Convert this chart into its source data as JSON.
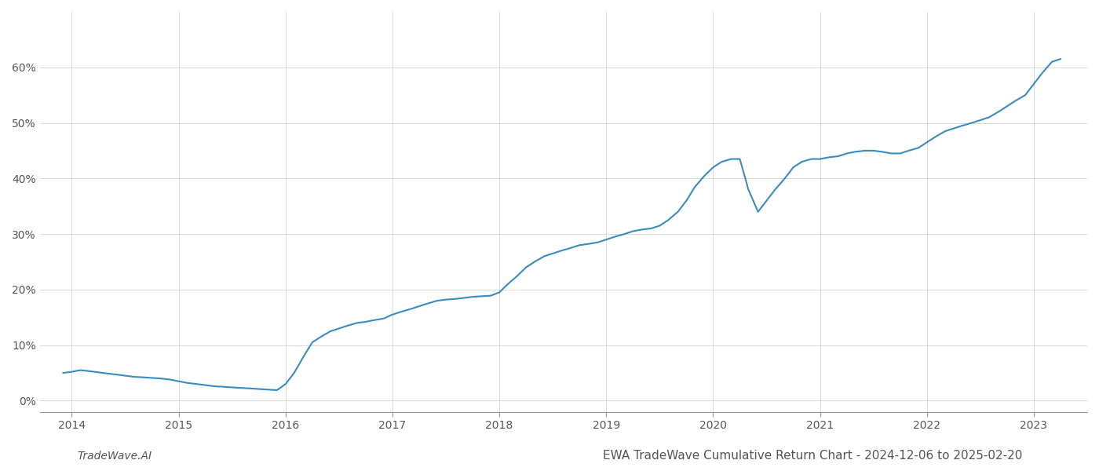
{
  "title": "EWA TradeWave Cumulative Return Chart - 2024-12-06 to 2025-02-20",
  "watermark": "TradeWave.AI",
  "line_color": "#3a8bbf",
  "line_width": 1.5,
  "background_color": "#ffffff",
  "grid_color": "#cccccc",
  "x_years": [
    2014,
    2015,
    2016,
    2017,
    2018,
    2019,
    2020,
    2021,
    2022,
    2023
  ],
  "x_data": [
    2013.92,
    2014.0,
    2014.08,
    2014.17,
    2014.25,
    2014.33,
    2014.42,
    2014.5,
    2014.58,
    2014.67,
    2014.75,
    2014.83,
    2014.92,
    2015.0,
    2015.08,
    2015.17,
    2015.25,
    2015.33,
    2015.42,
    2015.5,
    2015.58,
    2015.67,
    2015.75,
    2015.83,
    2015.92,
    2016.0,
    2016.08,
    2016.17,
    2016.25,
    2016.33,
    2016.42,
    2016.5,
    2016.58,
    2016.67,
    2016.75,
    2016.83,
    2016.92,
    2017.0,
    2017.08,
    2017.17,
    2017.25,
    2017.33,
    2017.42,
    2017.5,
    2017.58,
    2017.67,
    2017.75,
    2017.83,
    2017.92,
    2018.0,
    2018.08,
    2018.17,
    2018.25,
    2018.33,
    2018.42,
    2018.5,
    2018.58,
    2018.67,
    2018.75,
    2018.83,
    2018.92,
    2019.0,
    2019.08,
    2019.17,
    2019.25,
    2019.33,
    2019.42,
    2019.5,
    2019.58,
    2019.67,
    2019.75,
    2019.83,
    2019.92,
    2020.0,
    2020.08,
    2020.17,
    2020.25,
    2020.33,
    2020.42,
    2020.5,
    2020.58,
    2020.67,
    2020.75,
    2020.83,
    2020.92,
    2021.0,
    2021.08,
    2021.17,
    2021.25,
    2021.33,
    2021.42,
    2021.5,
    2021.58,
    2021.67,
    2021.75,
    2021.83,
    2021.92,
    2022.0,
    2022.08,
    2022.17,
    2022.25,
    2022.33,
    2022.42,
    2022.5,
    2022.58,
    2022.67,
    2022.75,
    2022.83,
    2022.92,
    2023.0,
    2023.08,
    2023.17,
    2023.25
  ],
  "y_data": [
    5.0,
    5.2,
    5.5,
    5.3,
    5.1,
    4.9,
    4.7,
    4.5,
    4.3,
    4.2,
    4.1,
    4.0,
    3.8,
    3.5,
    3.2,
    3.0,
    2.8,
    2.6,
    2.5,
    2.4,
    2.3,
    2.2,
    2.1,
    2.0,
    1.9,
    3.0,
    5.0,
    8.0,
    10.5,
    11.5,
    12.5,
    13.0,
    13.5,
    14.0,
    14.2,
    14.5,
    14.8,
    15.5,
    16.0,
    16.5,
    17.0,
    17.5,
    18.0,
    18.2,
    18.3,
    18.5,
    18.7,
    18.8,
    18.9,
    19.5,
    21.0,
    22.5,
    24.0,
    25.0,
    26.0,
    26.5,
    27.0,
    27.5,
    28.0,
    28.2,
    28.5,
    29.0,
    29.5,
    30.0,
    30.5,
    30.8,
    31.0,
    31.5,
    32.5,
    34.0,
    36.0,
    38.5,
    40.5,
    42.0,
    43.0,
    43.5,
    43.5,
    38.0,
    34.0,
    36.0,
    38.0,
    40.0,
    42.0,
    43.0,
    43.5,
    43.5,
    43.8,
    44.0,
    44.5,
    44.8,
    45.0,
    45.0,
    44.8,
    44.5,
    44.5,
    45.0,
    45.5,
    46.5,
    47.5,
    48.5,
    49.0,
    49.5,
    50.0,
    50.5,
    51.0,
    52.0,
    53.0,
    54.0,
    55.0,
    57.0,
    59.0,
    61.0,
    61.5
  ],
  "ylim": [
    -2,
    70
  ],
  "yticks": [
    0,
    10,
    20,
    30,
    40,
    50,
    60
  ],
  "xlim": [
    2013.7,
    2023.5
  ],
  "title_fontsize": 11,
  "tick_fontsize": 10,
  "watermark_fontsize": 10
}
